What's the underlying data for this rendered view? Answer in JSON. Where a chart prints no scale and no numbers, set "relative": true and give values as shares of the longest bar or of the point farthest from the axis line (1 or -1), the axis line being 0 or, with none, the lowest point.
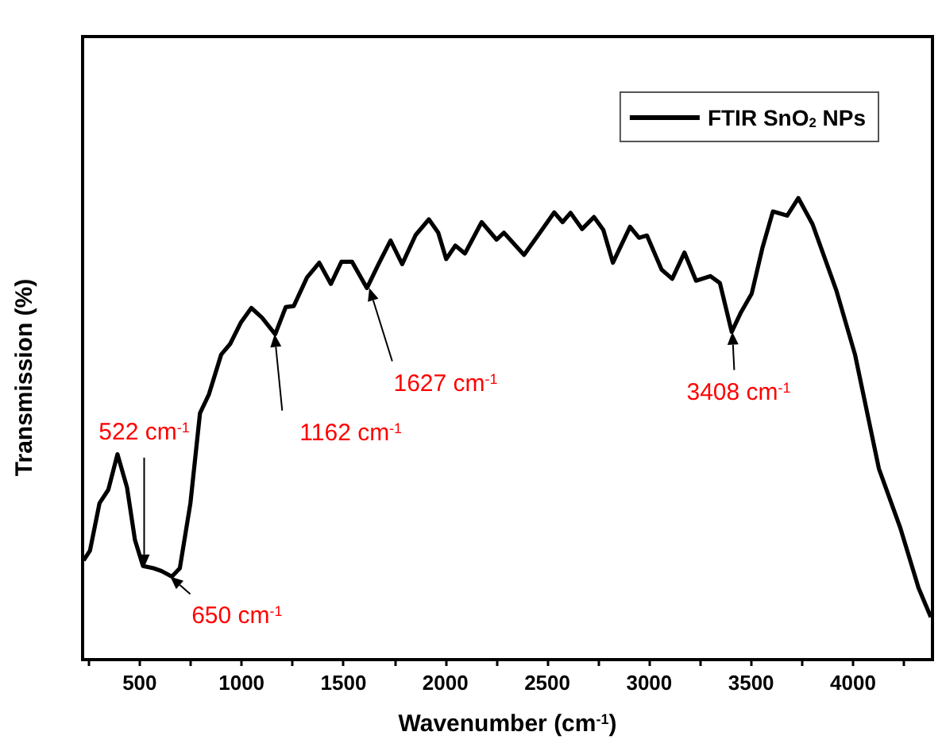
{
  "chart_data": {
    "type": "line",
    "relative": true,
    "xlabel": "Wavenumber (cm$^{-1}$)",
    "ylabel": "Transmission (%)",
    "xlim": [
      220,
      4390
    ],
    "xticks": [
      {
        "value": 250,
        "label": null
      },
      500,
      {
        "value": 750,
        "label": null
      },
      1000,
      {
        "value": 1250,
        "label": null
      },
      1500,
      {
        "value": 1750,
        "label": null
      },
      2000,
      {
        "value": 2250,
        "label": null
      },
      2500,
      {
        "value": 2750,
        "label": null
      },
      3000,
      {
        "value": 3250,
        "label": null
      },
      3500,
      {
        "value": 3750,
        "label": null
      },
      4000,
      {
        "value": 4250,
        "label": null
      }
    ],
    "legend": "top right",
    "grid": false,
    "marker": "none",
    "line_style": "solid",
    "series": [
      {
        "name": "FTIR SnO$_{2}$ NPs",
        "color": "#000000",
        "x": [
          225,
          256,
          303,
          346,
          391,
          438,
          477,
          516,
          568,
          607,
          658,
          697,
          749,
          796,
          840,
          900,
          944,
          996,
          1048,
          1100,
          1165,
          1217,
          1256,
          1321,
          1381,
          1438,
          1490,
          1542,
          1615,
          1672,
          1731,
          1788,
          1854,
          1919,
          1965,
          2004,
          2049,
          2096,
          2178,
          2251,
          2287,
          2386,
          2464,
          2534,
          2575,
          2614,
          2671,
          2729,
          2775,
          2822,
          2906,
          2950,
          2989,
          3061,
          3113,
          3173,
          3230,
          3300,
          3347,
          3405,
          3451,
          3503,
          3555,
          3607,
          3677,
          3732,
          3802,
          3919,
          4010,
          4127,
          4231,
          4322,
          4382
        ],
        "values": [
          0.215,
          0.236,
          0.339,
          0.368,
          0.445,
          0.373,
          0.259,
          0.203,
          0.198,
          0.192,
          0.18,
          0.198,
          0.339,
          0.534,
          0.575,
          0.661,
          0.684,
          0.73,
          0.762,
          0.741,
          0.705,
          0.764,
          0.766,
          0.828,
          0.86,
          0.814,
          0.862,
          0.862,
          0.805,
          0.857,
          0.908,
          0.857,
          0.92,
          0.954,
          0.925,
          0.868,
          0.897,
          0.88,
          0.948,
          0.91,
          0.925,
          0.877,
          0.925,
          0.969,
          0.948,
          0.968,
          0.933,
          0.959,
          0.931,
          0.86,
          0.938,
          0.914,
          0.919,
          0.845,
          0.825,
          0.882,
          0.821,
          0.831,
          0.816,
          0.71,
          0.753,
          0.793,
          0.891,
          0.971,
          0.962,
          1.0,
          0.943,
          0.799,
          0.661,
          0.414,
          0.287,
          0.155,
          0.092
        ]
      }
    ],
    "annotations": [
      {
        "text": "522 cm$^{-1}$",
        "x": 522,
        "y": 0.2
      },
      {
        "text": "650 cm$^{-1}$",
        "x": 650,
        "y": 0.18
      },
      {
        "text": "1162 cm$^{-1}$",
        "x": 1162,
        "y": 0.705
      },
      {
        "text": "1627 cm$^{-1}$",
        "x": 1627,
        "y": 0.805
      },
      {
        "text": "3408 cm$^{-1}$",
        "x": 3408,
        "y": 0.71
      }
    ]
  }
}
